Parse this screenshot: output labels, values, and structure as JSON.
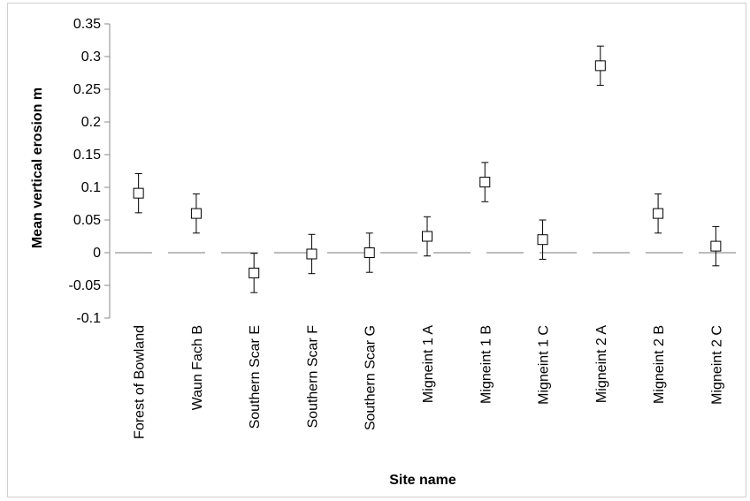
{
  "chart_data": {
    "type": "scatter",
    "xlabel": "Site name",
    "ylabel": "Mean vertical erosion m",
    "categories": [
      "Forest of Bowland",
      "Waun Fach B",
      "Southern Scar E",
      "Southern Scar F",
      "Southern Scar G",
      "Migneint 1 A",
      "Migneint 1 B",
      "Migneint 1 C",
      "Migneint 2 A",
      "Migneint 2 B",
      "Migneint 2 C"
    ],
    "series": [
      {
        "values": [
          0.091,
          0.06,
          -0.031,
          -0.002,
          0.0,
          0.025,
          0.108,
          0.02,
          0.286,
          0.06,
          0.01
        ],
        "error": [
          0.03,
          0.03,
          0.03,
          0.03,
          0.03,
          0.03,
          0.03,
          0.03,
          0.03,
          0.03,
          0.03
        ]
      }
    ],
    "ylim": [
      -0.1,
      0.35
    ],
    "yticks": [
      -0.1,
      -0.05,
      0,
      0.05,
      0.1,
      0.15,
      0.2,
      0.25,
      0.3,
      0.35
    ],
    "ytick_labels": [
      "-0.1",
      "-0.05",
      "0",
      "0.05",
      "0.1",
      "0.15",
      "0.2",
      "0.25",
      "0.3",
      "0.35"
    ],
    "zero_line": "dashed",
    "marker": "open-square",
    "grid": false,
    "legend": "none"
  }
}
